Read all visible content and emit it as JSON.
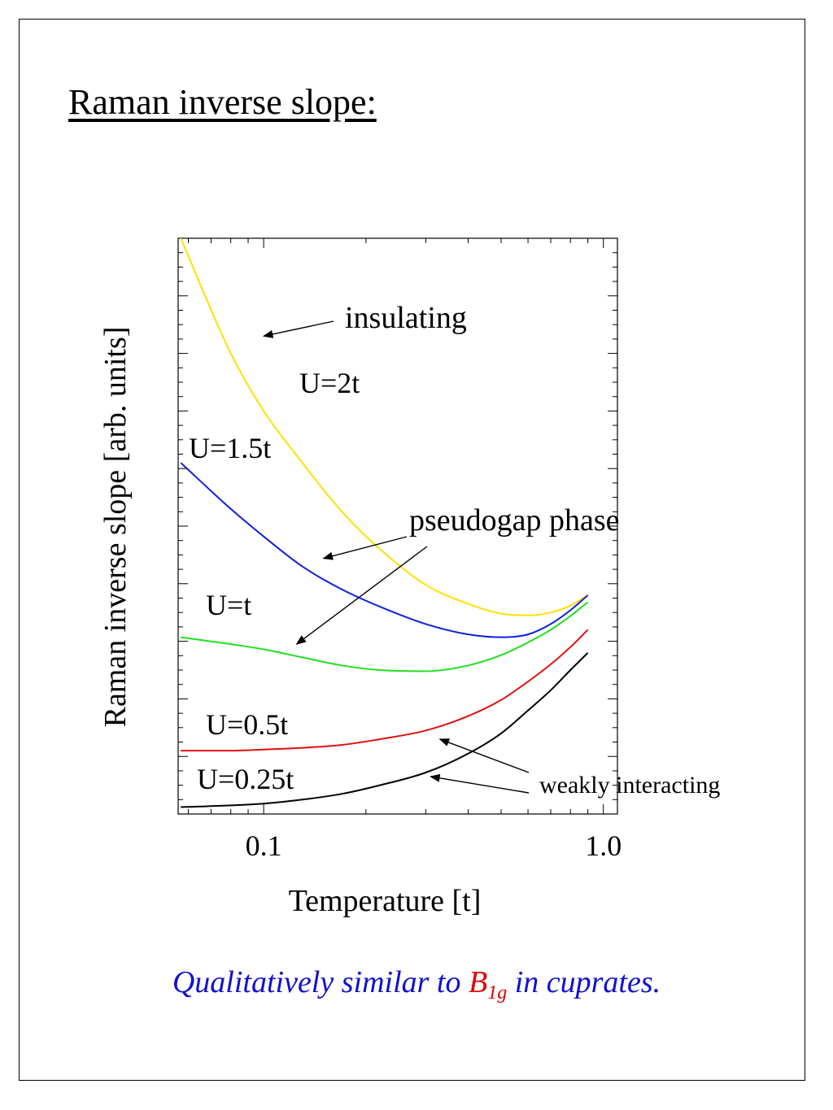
{
  "page": {
    "title": "Raman inverse slope:",
    "caption": {
      "before": "Qualitatively similar to ",
      "highlight_base": "B",
      "highlight_sub": "1g",
      "after": " in cuprates.",
      "main_color": "#1010d0",
      "highlight_color": "#e00000"
    }
  },
  "chart_data": {
    "type": "line",
    "xlabel": "Temperature [t]",
    "ylabel": "Raman inverse slope [arb. units]",
    "x_scale": "log",
    "xlim": [
      0.056,
      1.1
    ],
    "ylim": [
      0,
      10
    ],
    "x_ticks": [
      {
        "value": 0.1,
        "label": "0.1"
      },
      {
        "value": 1.0,
        "label": "1.0"
      }
    ],
    "y_tick_labels": false,
    "grid": false,
    "series": [
      {
        "name": "U=2t",
        "color": "#ffe000",
        "x": [
          0.057,
          0.08,
          0.1,
          0.13,
          0.17,
          0.22,
          0.3,
          0.4,
          0.5,
          0.6,
          0.7,
          0.8,
          0.9
        ],
        "y": [
          10.0,
          8.0,
          7.0,
          6.1,
          5.25,
          4.6,
          3.98,
          3.65,
          3.48,
          3.45,
          3.5,
          3.62,
          3.8
        ]
      },
      {
        "name": "U=1.5t",
        "color": "#1020e0",
        "x": [
          0.057,
          0.08,
          0.1,
          0.13,
          0.17,
          0.22,
          0.3,
          0.4,
          0.5,
          0.6,
          0.7,
          0.8,
          0.9
        ],
        "y": [
          6.1,
          5.3,
          4.82,
          4.3,
          3.9,
          3.6,
          3.3,
          3.12,
          3.07,
          3.12,
          3.3,
          3.54,
          3.8
        ]
      },
      {
        "name": "U=t",
        "color": "#20e020",
        "x": [
          0.057,
          0.08,
          0.1,
          0.13,
          0.17,
          0.22,
          0.3,
          0.4,
          0.5,
          0.6,
          0.7,
          0.8,
          0.9
        ],
        "y": [
          3.07,
          2.95,
          2.86,
          2.72,
          2.58,
          2.5,
          2.48,
          2.58,
          2.76,
          2.98,
          3.2,
          3.44,
          3.68
        ]
      },
      {
        "name": "U=0.5t",
        "color": "#e01010",
        "x": [
          0.057,
          0.08,
          0.1,
          0.13,
          0.17,
          0.22,
          0.3,
          0.4,
          0.5,
          0.6,
          0.7,
          0.8,
          0.9
        ],
        "y": [
          1.1,
          1.1,
          1.12,
          1.15,
          1.2,
          1.3,
          1.45,
          1.7,
          1.98,
          2.3,
          2.6,
          2.9,
          3.2
        ]
      },
      {
        "name": "U=0.25t",
        "color": "#000000",
        "x": [
          0.057,
          0.08,
          0.1,
          0.13,
          0.17,
          0.22,
          0.3,
          0.4,
          0.5,
          0.6,
          0.7,
          0.8,
          0.9
        ],
        "y": [
          0.12,
          0.15,
          0.18,
          0.25,
          0.35,
          0.5,
          0.72,
          1.05,
          1.4,
          1.8,
          2.15,
          2.5,
          2.8
        ]
      }
    ],
    "annotations": [
      {
        "text": "insulating",
        "x": 0.155,
        "y": 8.6,
        "arrow_x": 0.1,
        "arrow_y": 8.3
      },
      {
        "text": "pseudogap phase",
        "x": 0.23,
        "y": 5.1,
        "arrows": [
          [
            0.15,
            4.44
          ],
          [
            0.125,
            2.95
          ]
        ]
      },
      {
        "text": "weakly interacting",
        "x": 0.65,
        "y": 0.4,
        "arrows": [
          [
            0.33,
            1.3
          ],
          [
            0.31,
            0.65
          ]
        ]
      }
    ]
  }
}
